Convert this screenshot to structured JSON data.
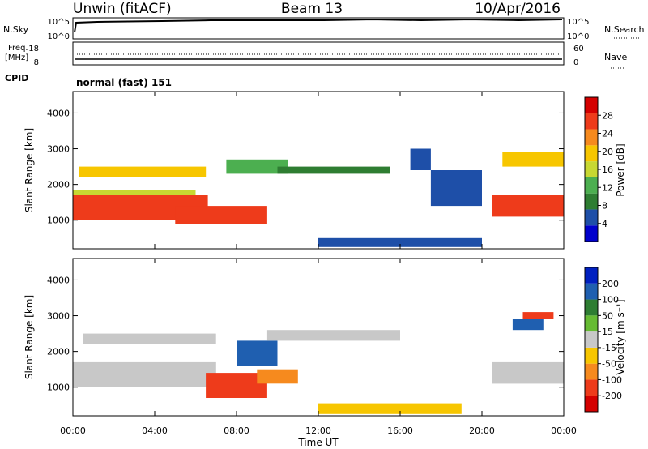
{
  "header": {
    "site": "Unwin (fitACF)",
    "beam": "Beam 13",
    "date": "10/Apr/2016"
  },
  "nsky": {
    "label": "N.Sky",
    "ticks": [
      "10^5",
      "10^0"
    ],
    "right_label": "N.Search",
    "right_ticks": [
      "10^5",
      "10^0"
    ]
  },
  "freq": {
    "label_line1": "Freq.",
    "label_line2": "[MHz]",
    "ticks": [
      "18",
      "8"
    ],
    "right_label": "Nave",
    "right_ticks": [
      "60",
      "0"
    ]
  },
  "cpid": {
    "label": "CPID",
    "mode": "normal (fast) 151"
  },
  "x_axis": {
    "label": "Time UT",
    "ticks": [
      "00:00",
      "04:00",
      "08:00",
      "12:00",
      "16:00",
      "20:00",
      "00:00"
    ],
    "range_hours": [
      0,
      24
    ]
  },
  "power_panel": {
    "ylabel": "Slant Range [km]",
    "yticks": [
      "4000",
      "3000",
      "2000",
      "1000"
    ],
    "colorbar_label": "Power [dB]",
    "colorbar_ticks": [
      "28",
      "24",
      "20",
      "16",
      "12",
      "8",
      "4"
    ],
    "colors": [
      "#0000cc",
      "#1e4fa8",
      "#2e7d32",
      "#4caf50",
      "#c8d832",
      "#f7c600",
      "#f68a1e",
      "#ee3b1b",
      "#d40000"
    ]
  },
  "velocity_panel": {
    "ylabel": "Slant Range [km]",
    "yticks": [
      "4000",
      "3000",
      "2000",
      "1000"
    ],
    "colorbar_label": "Velocity [m s⁻¹]",
    "colorbar_ticks": [
      "200",
      "100",
      "50",
      "15",
      "-15",
      "-50",
      "-100",
      "-200"
    ],
    "colors": [
      "#0020c0",
      "#1f5fb0",
      "#2e7d32",
      "#66bb33",
      "#c8c8c8",
      "#f7c600",
      "#f68a1e",
      "#ee3b1b",
      "#d40000"
    ]
  },
  "chart_data": {
    "type": "heatmap",
    "x_range_hours": [
      0,
      24
    ],
    "y_range_km": [
      200,
      4600
    ],
    "power_regions": [
      {
        "t0": 0.0,
        "t1": 6.6,
        "r0": 1000,
        "r1": 1700,
        "value": 26
      },
      {
        "t0": 0.0,
        "t1": 6.0,
        "r0": 1700,
        "r1": 1850,
        "value": 17
      },
      {
        "t0": 5.0,
        "t1": 9.5,
        "r0": 900,
        "r1": 1400,
        "value": 27
      },
      {
        "t0": 0.3,
        "t1": 6.5,
        "r0": 2200,
        "r1": 2500,
        "value": 19
      },
      {
        "t0": 7.5,
        "t1": 10.5,
        "r0": 2300,
        "r1": 2700,
        "value": 13
      },
      {
        "t0": 10.0,
        "t1": 15.5,
        "r0": 2300,
        "r1": 2500,
        "value": 8
      },
      {
        "t0": 16.5,
        "t1": 17.5,
        "r0": 2400,
        "r1": 3000,
        "value": 5
      },
      {
        "t0": 17.5,
        "t1": 20.0,
        "r0": 1400,
        "r1": 2400,
        "value": 6
      },
      {
        "t0": 20.5,
        "t1": 24.0,
        "r0": 1100,
        "r1": 1700,
        "value": 26
      },
      {
        "t0": 21.0,
        "t1": 24.0,
        "r0": 2500,
        "r1": 2900,
        "value": 20
      },
      {
        "t0": 12.0,
        "t1": 20.0,
        "r0": 250,
        "r1": 500,
        "value": 6
      }
    ],
    "velocity_regions": [
      {
        "t0": 0.0,
        "t1": 7.0,
        "r0": 1000,
        "r1": 1700,
        "value": 0
      },
      {
        "t0": 0.5,
        "t1": 7.0,
        "r0": 2200,
        "r1": 2500,
        "value": 0
      },
      {
        "t0": 6.5,
        "t1": 9.5,
        "r0": 700,
        "r1": 1400,
        "value": -180
      },
      {
        "t0": 8.0,
        "t1": 10.0,
        "r0": 1600,
        "r1": 2300,
        "value": 150
      },
      {
        "t0": 9.0,
        "t1": 11.0,
        "r0": 1100,
        "r1": 1500,
        "value": -60
      },
      {
        "t0": 9.5,
        "t1": 16.0,
        "r0": 2300,
        "r1": 2600,
        "value": 0
      },
      {
        "t0": 12.0,
        "t1": 19.0,
        "r0": 250,
        "r1": 550,
        "value": -30
      },
      {
        "t0": 20.5,
        "t1": 24.0,
        "r0": 1100,
        "r1": 1700,
        "value": 0
      },
      {
        "t0": 21.5,
        "t1": 23.0,
        "r0": 2600,
        "r1": 2900,
        "value": 180
      },
      {
        "t0": 22.0,
        "t1": 23.5,
        "r0": 2900,
        "r1": 3100,
        "value": -150
      }
    ]
  }
}
